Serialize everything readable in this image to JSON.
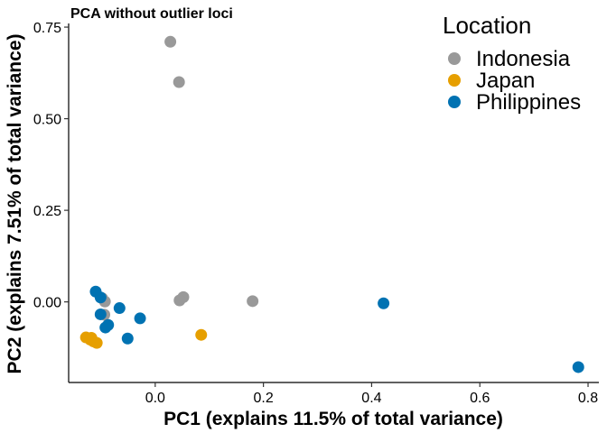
{
  "chart_data": {
    "type": "scatter",
    "title": "PCA without outlier loci",
    "xlabel": "PC1 (explains 11.5% of total variance)",
    "ylabel": "PC2 (explains 7.51% of total variance)",
    "xlim": [
      -0.16,
      0.82
    ],
    "ylim": [
      -0.22,
      0.76
    ],
    "x_ticks": [
      0.0,
      0.2,
      0.4,
      0.6,
      0.8
    ],
    "x_tick_labels": [
      "0.0",
      "0.2",
      "0.4",
      "0.6",
      "0.8"
    ],
    "y_ticks": [
      0.0,
      0.25,
      0.5,
      0.75
    ],
    "y_tick_labels": [
      "0.00",
      "0.25",
      "0.50",
      "0.75"
    ],
    "grid": false,
    "legend": {
      "title": "Location",
      "placement": "top-right"
    },
    "series": [
      {
        "name": "Indonesia",
        "color": "#999999",
        "points": [
          {
            "x": 0.028,
            "y": 0.71
          },
          {
            "x": 0.044,
            "y": 0.6
          },
          {
            "x": 0.18,
            "y": 0.002
          },
          {
            "x": 0.052,
            "y": 0.013
          },
          {
            "x": 0.045,
            "y": 0.004
          },
          {
            "x": -0.093,
            "y": 0.001
          },
          {
            "x": -0.094,
            "y": -0.035
          },
          {
            "x": -0.098,
            "y": 0.01
          }
        ]
      },
      {
        "name": "Japan",
        "color": "#E69F00",
        "points": [
          {
            "x": 0.085,
            "y": -0.09
          },
          {
            "x": -0.128,
            "y": -0.097
          },
          {
            "x": -0.12,
            "y": -0.103
          },
          {
            "x": -0.114,
            "y": -0.108
          },
          {
            "x": -0.108,
            "y": -0.112
          },
          {
            "x": -0.118,
            "y": -0.098
          }
        ]
      },
      {
        "name": "Philippines",
        "color": "#0072B2",
        "points": [
          {
            "x": 0.422,
            "y": -0.004
          },
          {
            "x": 0.782,
            "y": -0.178
          },
          {
            "x": -0.11,
            "y": 0.028
          },
          {
            "x": -0.101,
            "y": 0.012
          },
          {
            "x": -0.066,
            "y": -0.017
          },
          {
            "x": -0.101,
            "y": -0.034
          },
          {
            "x": -0.028,
            "y": -0.045
          },
          {
            "x": -0.087,
            "y": -0.063
          },
          {
            "x": -0.092,
            "y": -0.07
          },
          {
            "x": -0.051,
            "y": -0.1
          }
        ]
      }
    ]
  }
}
